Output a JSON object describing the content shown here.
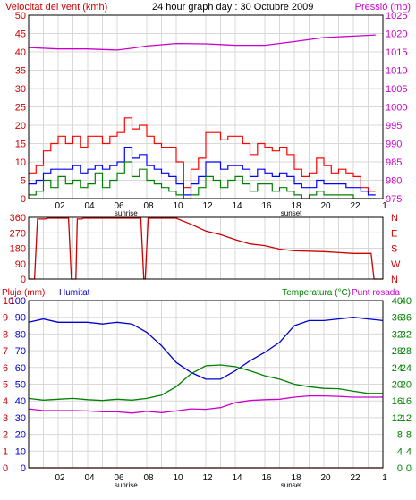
{
  "header": {
    "wind_label": "Velocitat del vent (kmh)",
    "title": "24 hour graph day : 30 Octubre 2009",
    "pressure_label": "Pressió (mb)"
  },
  "colors": {
    "background": "#ffffff",
    "grid": "#d8d8d8",
    "frame": "#000000",
    "wind": "#ff0000",
    "wind_avg": "#0000ff",
    "wind_min": "#008000",
    "pressure": "#cc00cc",
    "direction": "#cc0000",
    "rain": "#cc0000",
    "humidity": "#0000cc",
    "temperature": "#008000",
    "dewpoint": "#cc00cc",
    "left_axis_text": "#cc0000",
    "pressure_axis_text": "#cc00cc",
    "rain_axis_text": "#cc0000",
    "humidity_axis_text": "#0000cc",
    "temp_axis_text": "#008000"
  },
  "chart_data": [
    {
      "type": "line",
      "name": "wind-pressure",
      "title": "24 hour graph day : 30 Octubre 2009",
      "ylabel_left": "Velocitat del vent (kmh)",
      "ylabel_right": "Pressió (mb)",
      "x_ticks": [
        "02",
        "04",
        "06",
        "08",
        "10",
        "12",
        "14",
        "16",
        "18",
        "20",
        "22",
        "1"
      ],
      "x_markers": [
        "sunrise",
        "sunset"
      ],
      "x_marker_hours": [
        7.2,
        18.4
      ],
      "xlim": [
        0,
        24
      ],
      "ylim_left": [
        0,
        50
      ],
      "ylim_right": [
        975,
        1025
      ],
      "y_ticks_left": [
        0,
        5,
        10,
        15,
        20,
        25,
        30,
        35,
        40,
        45,
        50
      ],
      "y_ticks_right": [
        975,
        980,
        985,
        990,
        995,
        1000,
        1005,
        1010,
        1015,
        1020,
        1025
      ],
      "grid": true,
      "series": [
        {
          "axis": "left",
          "x": [
            0,
            0.5,
            1,
            1.5,
            2,
            2.5,
            3,
            3.5,
            4,
            4.5,
            5,
            5.5,
            6,
            6.5,
            7,
            7.5,
            8,
            8.5,
            9,
            9.5,
            10,
            10.5,
            11,
            11.5,
            12,
            12.5,
            13,
            13.5,
            14,
            14.5,
            15,
            15.5,
            16,
            16.5,
            17,
            17.5,
            18,
            18.5,
            19,
            19.5,
            20,
            20.5,
            21,
            21.5,
            22,
            22.5,
            23
          ],
          "values": [
            7,
            9,
            13,
            15,
            17,
            15,
            17,
            14,
            17,
            17,
            15,
            17,
            18,
            22,
            19,
            20,
            17,
            15,
            14,
            14,
            10,
            3,
            8,
            11,
            18,
            18,
            16,
            17,
            17,
            15,
            12,
            15,
            14,
            13,
            14,
            12,
            8,
            6,
            7,
            11,
            9,
            7,
            8,
            7,
            6,
            3,
            2
          ]
        },
        {
          "axis": "left",
          "x": [
            0,
            0.5,
            1,
            1.5,
            2,
            2.5,
            3,
            3.5,
            4,
            4.5,
            5,
            5.5,
            6,
            6.5,
            7,
            7.5,
            8,
            8.5,
            9,
            9.5,
            10,
            10.5,
            11,
            11.5,
            12,
            12.5,
            13,
            13.5,
            14,
            14.5,
            15,
            15.5,
            16,
            16.5,
            17,
            17.5,
            18,
            18.5,
            19,
            19.5,
            20,
            20.5,
            21,
            21.5,
            22,
            22.5,
            23
          ],
          "values": [
            4,
            5,
            7,
            8,
            8,
            8,
            9,
            7,
            8,
            9,
            8,
            9,
            10,
            14,
            11,
            12,
            9,
            8,
            7,
            6,
            4,
            1,
            4,
            6,
            10,
            10,
            8,
            9,
            9,
            8,
            6,
            8,
            7,
            6,
            7,
            6,
            4,
            3,
            3,
            5,
            4,
            4,
            4,
            3,
            3,
            2,
            1
          ]
        },
        {
          "axis": "left",
          "x": [
            0,
            0.5,
            1,
            1.5,
            2,
            2.5,
            3,
            3.5,
            4,
            4.5,
            5,
            5.5,
            6,
            6.5,
            7,
            7.5,
            8,
            8.5,
            9,
            9.5,
            10,
            10.5,
            11,
            11.5,
            12,
            12.5,
            13,
            13.5,
            14,
            14.5,
            15,
            15.5,
            16,
            16.5,
            17,
            17.5,
            18,
            18.5,
            19,
            19.5,
            20,
            20.5,
            21,
            21.5,
            22,
            22.5,
            23
          ],
          "values": [
            1,
            2,
            5,
            3,
            6,
            4,
            5,
            3,
            4,
            7,
            3,
            5,
            7,
            10,
            6,
            8,
            5,
            4,
            3,
            2,
            1,
            0,
            1,
            3,
            6,
            5,
            3,
            5,
            6,
            4,
            2,
            4,
            4,
            2,
            3,
            2,
            1,
            0,
            1,
            2,
            1,
            1,
            1,
            1,
            0,
            0,
            0
          ]
        },
        {
          "axis": "right",
          "x": [
            0,
            2,
            4,
            6,
            7,
            8,
            10,
            12,
            14,
            16,
            18,
            20,
            22,
            23.5
          ],
          "values": [
            1016.2,
            1015.8,
            1015.8,
            1015.5,
            1016,
            1016.6,
            1017.3,
            1017.2,
            1016.8,
            1016.8,
            1017.8,
            1018.9,
            1019.3,
            1019.6
          ]
        }
      ]
    },
    {
      "type": "line",
      "name": "wind-direction",
      "ylabel_right": [
        "N",
        "W",
        "S",
        "E",
        "N"
      ],
      "ylim": [
        0,
        360
      ],
      "y_ticks": [
        0,
        90,
        180,
        270,
        360
      ],
      "xlim": [
        0,
        24
      ],
      "grid": true,
      "series": [
        {
          "x": [
            0,
            0.4,
            0.6,
            1.1,
            1.3,
            2.7,
            2.9,
            3.2,
            3.3,
            3.6,
            3.7,
            7.6,
            7.8,
            7.9,
            8.1,
            10,
            11,
            12,
            13,
            14,
            15,
            16,
            17,
            18,
            20,
            22,
            23.2,
            23.4,
            24
          ],
          "values": [
            0,
            0,
            350,
            350,
            355,
            355,
            0,
            0,
            350,
            350,
            355,
            355,
            0,
            0,
            355,
            355,
            320,
            280,
            260,
            230,
            205,
            195,
            175,
            165,
            160,
            150,
            150,
            0,
            0
          ]
        }
      ]
    },
    {
      "type": "line",
      "name": "rain-humidity-temperature",
      "ylabel_left_1": "Pluja (mm)",
      "ylabel_left_2": "Humitat",
      "ylabel_right_1": "Temperatura (°C)",
      "ylabel_right_2": "Punt rosada",
      "x_ticks": [
        "02",
        "04",
        "06",
        "08",
        "10",
        "12",
        "14",
        "16",
        "18",
        "20",
        "22",
        "1"
      ],
      "x_markers": [
        "sunrise",
        "sunset"
      ],
      "x_marker_hours": [
        7.2,
        18.4
      ],
      "xlim": [
        0,
        24
      ],
      "ylim_rain": [
        0,
        10
      ],
      "ylim_humidity": [
        0,
        100
      ],
      "ylim_temperature": [
        0,
        40
      ],
      "y_ticks_rain": [
        0,
        1,
        2,
        3,
        4,
        5,
        6,
        7,
        8,
        9,
        10
      ],
      "y_ticks_humidity": [
        0,
        10,
        20,
        30,
        40,
        50,
        60,
        70,
        80,
        90,
        100
      ],
      "y_ticks_temperature": [
        0,
        4,
        8,
        12,
        16,
        20,
        24,
        28,
        32,
        36,
        40
      ],
      "grid": true,
      "series": [
        {
          "axis": "rain",
          "x": [
            0,
            24
          ],
          "values": [
            0,
            0
          ]
        },
        {
          "axis": "humidity",
          "x": [
            0,
            1,
            2,
            3,
            4,
            5,
            6,
            7,
            8,
            9,
            10,
            11,
            12,
            13,
            14,
            15,
            16,
            17,
            18,
            19,
            20,
            21,
            22,
            23,
            24
          ],
          "values": [
            87,
            89,
            87,
            87,
            87,
            86,
            87,
            86,
            81,
            73,
            63,
            57,
            53,
            53,
            58,
            64,
            69,
            75,
            85,
            88,
            88,
            89,
            90,
            89,
            88
          ]
        },
        {
          "axis": "temperature",
          "x": [
            0,
            1,
            2,
            3,
            4,
            5,
            6,
            7,
            8,
            9,
            10,
            11,
            12,
            13,
            14,
            15,
            16,
            17,
            18,
            19,
            20,
            21,
            22,
            23,
            24
          ],
          "values": [
            16.6,
            16.2,
            16.4,
            16.6,
            16.3,
            16.1,
            16.4,
            16.2,
            16.6,
            17.4,
            19.4,
            22.5,
            24.4,
            24.6,
            24.2,
            23.2,
            22,
            21.2,
            20,
            19.4,
            19,
            18.9,
            18.3,
            17.8,
            17.8
          ]
        },
        {
          "axis": "temperature",
          "x": [
            0,
            1,
            2,
            3,
            4,
            5,
            6,
            7,
            8,
            9,
            10,
            11,
            12,
            13,
            14,
            15,
            16,
            17,
            18,
            19,
            20,
            21,
            22,
            23,
            24
          ],
          "values": [
            14.1,
            13.7,
            13.7,
            13.7,
            13.6,
            13.4,
            13.4,
            13.1,
            13.5,
            13.2,
            13.6,
            14.1,
            14,
            14.4,
            15.6,
            16.1,
            16.3,
            16.4,
            16.9,
            17.2,
            17.2,
            17.1,
            16.9,
            16.9,
            16.9
          ]
        }
      ]
    }
  ]
}
